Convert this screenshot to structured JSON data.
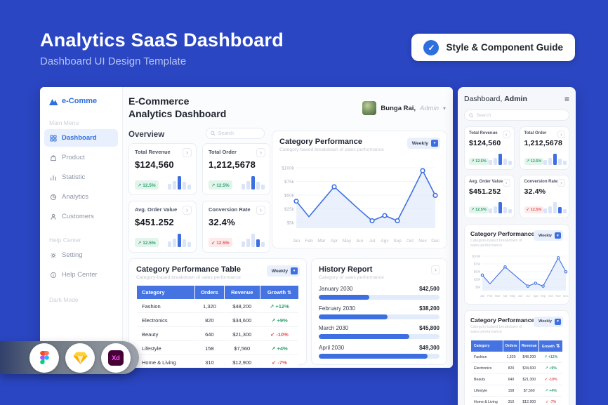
{
  "header": {
    "title": "Analytics SaaS Dashboard",
    "subtitle": "Dashboard UI Design Template",
    "guide_button": "Style & Component Guide"
  },
  "sidebar": {
    "logo": "e-Comme",
    "main_menu_label": "Main Menu",
    "main_menu": [
      "Dashboard",
      "Product",
      "Statistic",
      "Analytics",
      "Customers"
    ],
    "help_label": "Help Center",
    "help_menu": [
      "Setting",
      "Help Center"
    ],
    "dark_mode_label": "Dark Mode"
  },
  "main": {
    "title_line1": "E-Commerce",
    "title_line2": "Analytics Dashboard",
    "user_name": "Bunga Rai,",
    "user_role": "Admin",
    "overview_label": "Overview",
    "search_placeholder": "Search",
    "stats": [
      {
        "label": "Total Revenue",
        "value": "$124,560",
        "change": "12.5%",
        "trend": "up"
      },
      {
        "label": "Total Order",
        "value": "1,212,5678",
        "change": "12.5%",
        "trend": "up"
      },
      {
        "label": "Avg. Order Value",
        "value": "$451.252",
        "change": "12.5%",
        "trend": "up"
      },
      {
        "label": "Conversion Rate",
        "value": "32.4%",
        "change": "12.5%",
        "trend": "down"
      }
    ],
    "chart_card": {
      "title": "Category Performance",
      "subtitle": "Category-based breakdown of sales performance",
      "period": "Weekly"
    },
    "table_card": {
      "title": "Category Performance Table",
      "subtitle": "Category-based breakdown of sales performance",
      "period": "Weekly"
    },
    "history_card": {
      "title": "History Report",
      "subtitle": "Category of sales performance"
    }
  },
  "table": {
    "headers": [
      "Category",
      "Orders",
      "Revenue",
      "Growth"
    ],
    "rows": [
      {
        "category": "Fashion",
        "orders": "1,320",
        "revenue": "$48,200",
        "growth": "+12%",
        "trend": "up"
      },
      {
        "category": "Electronics",
        "orders": "820",
        "revenue": "$34,600",
        "growth": "+9%",
        "trend": "up"
      },
      {
        "category": "Beauty",
        "orders": "640",
        "revenue": "$21,300",
        "growth": "-10%",
        "trend": "down"
      },
      {
        "category": "Lifestyle",
        "orders": "158",
        "revenue": "$7,560",
        "growth": "+4%",
        "trend": "up"
      },
      {
        "category": "Home & Living",
        "orders": "310",
        "revenue": "$12,900",
        "growth": "-7%",
        "trend": "down"
      }
    ]
  },
  "history": {
    "items": [
      {
        "label": "January 2030",
        "value": "$42,500"
      },
      {
        "label": "February 2030",
        "value": "$38,200"
      },
      {
        "label": "March 2030",
        "value": "$45,800"
      },
      {
        "label": "April 2030",
        "value": "$49,300"
      }
    ]
  },
  "mobile": {
    "title_regular": "Dashboard,",
    "title_bold": "Admin",
    "search_placeholder": "Search"
  },
  "tools": {
    "names": [
      "Figma",
      "Sketch",
      "Adobe XD"
    ],
    "xd_logo_text": "Xd"
  },
  "chart_data": [
    {
      "type": "line",
      "title": "Category Performance",
      "x": [
        "Jan",
        "Feb",
        "Mar",
        "Apr",
        "May",
        "Jun",
        "Jul",
        "Ags",
        "Sep",
        "Oct",
        "Nov",
        "Dec"
      ],
      "values_thousands": [
        42,
        15,
        41,
        67,
        47,
        27,
        8,
        17,
        8,
        51,
        95,
        52
      ],
      "marker_indices": [
        0,
        3,
        6,
        7,
        8,
        10,
        11
      ],
      "yticks": [
        "$100k",
        "$75k",
        "$50k",
        "$25k",
        "$5k"
      ],
      "ylim_thousands": [
        0,
        100
      ],
      "grid": true,
      "legend": false
    },
    {
      "type": "bar",
      "title": "History Report",
      "categories": [
        "January 2030",
        "February 2030",
        "March 2030",
        "April 2030"
      ],
      "values": [
        42500,
        38200,
        45800,
        49300
      ],
      "bar_fill_pct": [
        42,
        57,
        75,
        90
      ]
    }
  ]
}
